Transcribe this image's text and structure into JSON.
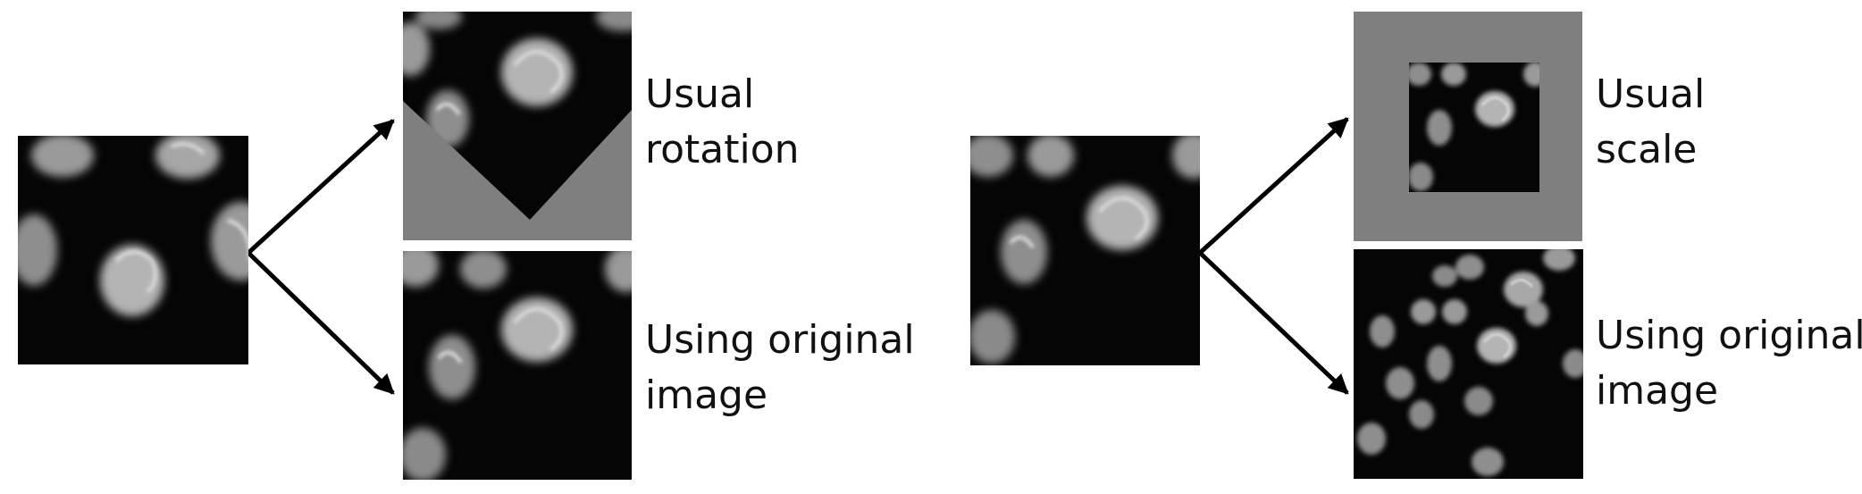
{
  "colors": {
    "background": "#ffffff",
    "cell_tile_bg": "#050505",
    "padding_gray": "#7f7f7f",
    "cell_glow": "#bdbdbd",
    "arrow": "#000000"
  },
  "left_example": {
    "top_label": {
      "line1": "Usual",
      "line2": "rotation"
    },
    "bottom_label": {
      "line1": "Using original",
      "line2": "image"
    }
  },
  "right_example": {
    "top_label": {
      "line1": "Usual",
      "line2": "scale"
    },
    "bottom_label": {
      "line1": "Using original",
      "line2": "image"
    }
  }
}
